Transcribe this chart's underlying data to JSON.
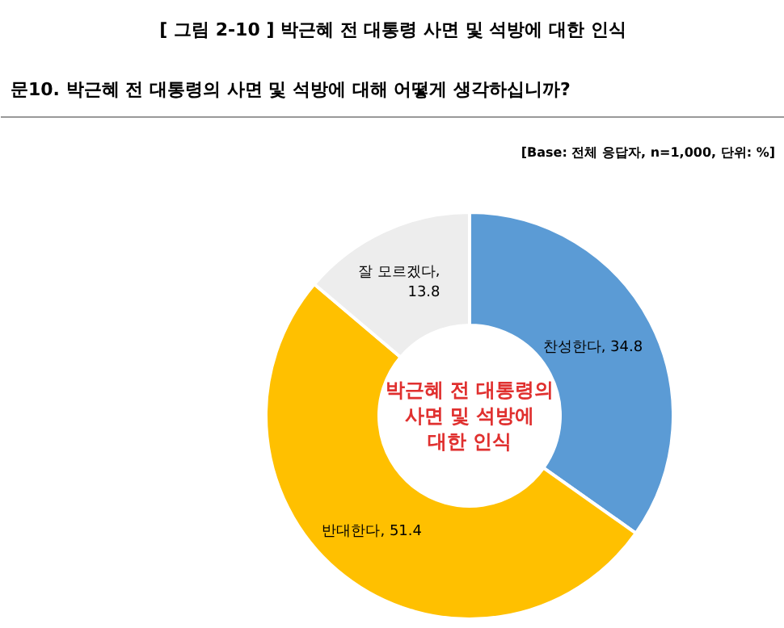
{
  "chart_data": {
    "type": "donut",
    "title": "[ 그림 2-10 ] 박근혜 전 대통령 사면 및 석방에 대한 인식",
    "subtitle": "문10. 박근혜 전 대통령의 사면 및 석방에 대해 어떻게 생각하십니까?",
    "annotations": [
      "[Base: 전체 응답자, n=1,000, 단위: %]",
      "박근혜 전 대통령의 사면 및 석방에 대한 인식"
    ],
    "categories": [
      "찬성한다",
      "반대한다",
      "잘 모르겠다"
    ],
    "values": [
      34.8,
      51.4,
      13.8
    ],
    "colors": [
      "#5b9bd5",
      "#ffc000",
      "#ededed"
    ],
    "value_labels": [
      ", 34.8",
      ", 51.4",
      ",\n13.8"
    ]
  }
}
